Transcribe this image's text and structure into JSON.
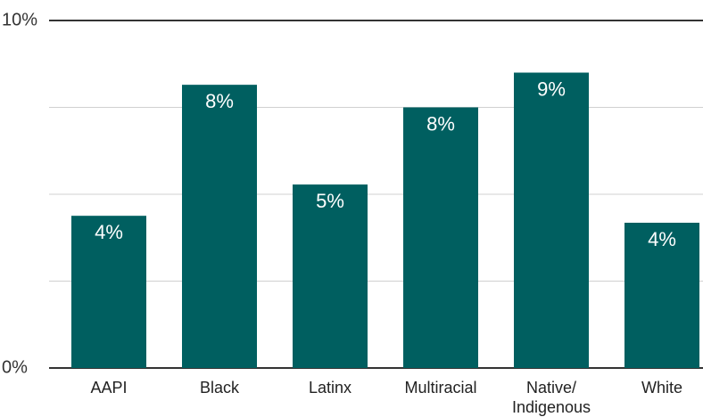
{
  "chart_data": {
    "type": "bar",
    "categories": [
      "AAPI",
      "Black",
      "Latinx",
      "Multiracial",
      "Native/ Indigenous",
      "White"
    ],
    "values": [
      4.38,
      8.15,
      5.28,
      7.5,
      8.5,
      4.18
    ],
    "value_labels": [
      "4%",
      "8%",
      "5%",
      "8%",
      "9%",
      "4%"
    ],
    "color": "#005f60",
    "ylim": [
      0,
      10
    ],
    "yticks": [
      {
        "value": 0,
        "label": "0%"
      },
      {
        "value": 10,
        "label": "10%"
      }
    ],
    "ygrid": [
      2.5,
      5,
      7.5
    ],
    "grid": true
  }
}
